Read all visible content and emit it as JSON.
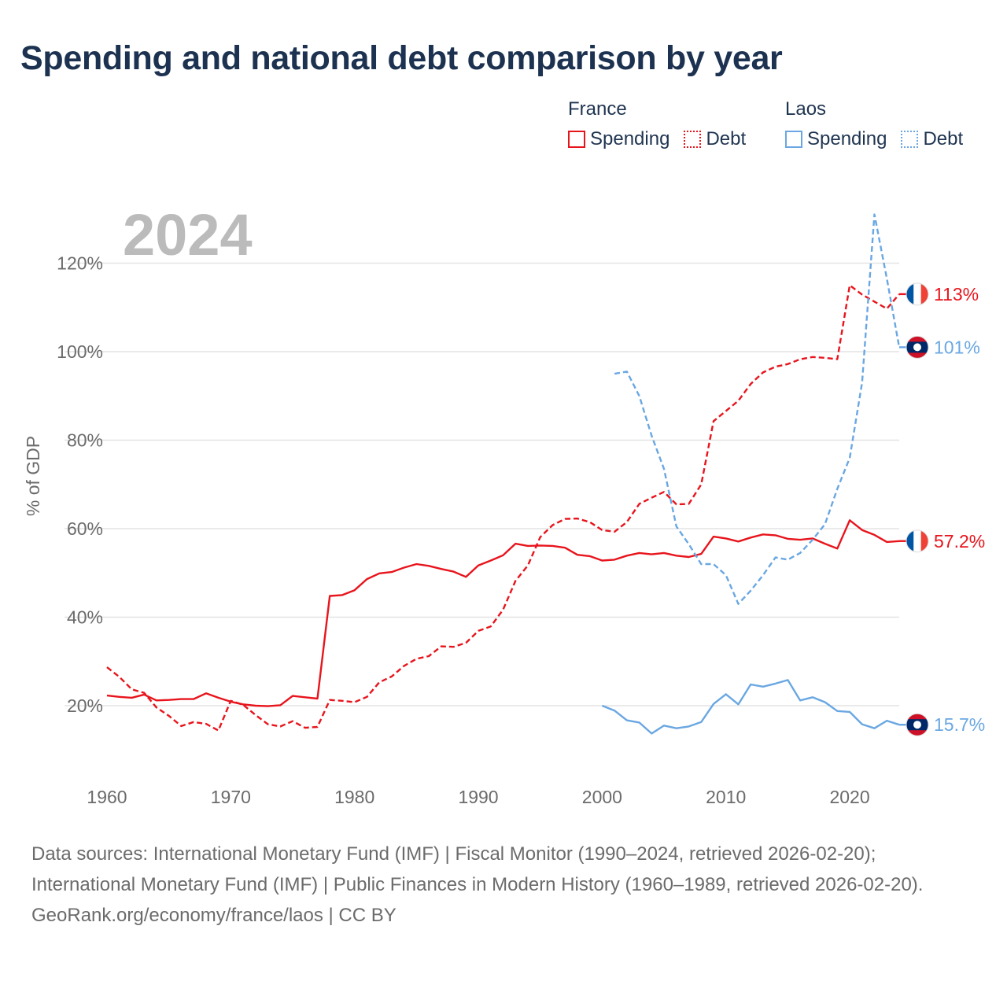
{
  "title": "Spending and national debt comparison by year",
  "colors": {
    "france": "#e8141c",
    "laos": "#6aa7e2",
    "grid": "#e4e4e4",
    "axis_text": "#6b6b6b",
    "year_label": "#bbbbbb"
  },
  "legend": {
    "france": {
      "name": "France",
      "spending": "Spending",
      "debt": "Debt"
    },
    "laos": {
      "name": "Laos",
      "spending": "Spending",
      "debt": "Debt"
    }
  },
  "chart_data": {
    "type": "line",
    "title": "Spending and national debt comparison by year",
    "year_label": "2024",
    "ylabel": "% of GDP",
    "xlim": [
      1960,
      2024
    ],
    "ylim": [
      10,
      130
    ],
    "x_ticks": [
      1960,
      1970,
      1980,
      1990,
      2000,
      2010,
      2020
    ],
    "y_ticks": [
      20,
      40,
      60,
      80,
      100,
      120
    ],
    "y_tick_format": "{v}%",
    "series": [
      {
        "id": "france-spending",
        "name": "France Spending",
        "country": "France",
        "color": "#e8141c",
        "dashed": false,
        "end_label": "57.2%",
        "flag": "france",
        "x": [
          1960,
          1961,
          1962,
          1963,
          1964,
          1965,
          1966,
          1967,
          1968,
          1969,
          1970,
          1971,
          1972,
          1973,
          1974,
          1975,
          1976,
          1977,
          1978,
          1979,
          1980,
          1981,
          1982,
          1983,
          1984,
          1985,
          1986,
          1987,
          1988,
          1989,
          1990,
          1991,
          1992,
          1993,
          1994,
          1995,
          1996,
          1997,
          1998,
          1999,
          2000,
          2001,
          2002,
          2003,
          2004,
          2005,
          2006,
          2007,
          2008,
          2009,
          2010,
          2011,
          2012,
          2013,
          2014,
          2015,
          2016,
          2017,
          2018,
          2019,
          2020,
          2021,
          2022,
          2023,
          2024
        ],
        "y": [
          22.3,
          22.0,
          21.8,
          22.5,
          21.2,
          21.3,
          21.5,
          21.5,
          22.8,
          21.8,
          20.9,
          20.3,
          20.0,
          19.9,
          20.1,
          22.2,
          21.9,
          21.6,
          44.8,
          45.0,
          46.1,
          48.6,
          49.9,
          50.2,
          51.2,
          52.0,
          51.6,
          50.9,
          50.3,
          49.1,
          51.7,
          52.8,
          54.0,
          56.6,
          56.1,
          56.2,
          56.1,
          55.7,
          54.1,
          53.8,
          52.8,
          53.0,
          53.9,
          54.5,
          54.2,
          54.5,
          53.9,
          53.6,
          54.3,
          58.2,
          57.8,
          57.1,
          58.0,
          58.7,
          58.5,
          57.7,
          57.5,
          57.8,
          56.6,
          55.5,
          61.9,
          59.7,
          58.6,
          57.0,
          57.2
        ]
      },
      {
        "id": "france-debt",
        "name": "France Debt",
        "country": "France",
        "color": "#e8141c",
        "dashed": true,
        "end_label": "113%",
        "flag": "france",
        "x": [
          1960,
          1961,
          1962,
          1963,
          1964,
          1965,
          1966,
          1967,
          1968,
          1969,
          1970,
          1971,
          1972,
          1973,
          1974,
          1975,
          1976,
          1977,
          1978,
          1979,
          1980,
          1981,
          1982,
          1983,
          1984,
          1985,
          1986,
          1987,
          1988,
          1989,
          1990,
          1991,
          1992,
          1993,
          1994,
          1995,
          1996,
          1997,
          1998,
          1999,
          2000,
          2001,
          2002,
          2003,
          2004,
          2005,
          2006,
          2007,
          2008,
          2009,
          2010,
          2011,
          2012,
          2013,
          2014,
          2015,
          2016,
          2017,
          2018,
          2019,
          2020,
          2021,
          2022,
          2023,
          2024
        ],
        "y": [
          28.7,
          26.5,
          23.7,
          22.9,
          19.6,
          17.7,
          15.4,
          16.3,
          15.9,
          14.4,
          21.1,
          20.2,
          17.9,
          15.8,
          15.3,
          16.5,
          15.0,
          15.2,
          21.3,
          21.1,
          20.8,
          22.0,
          25.3,
          26.6,
          29.0,
          30.6,
          31.2,
          33.4,
          33.3,
          34.2,
          36.9,
          37.9,
          41.7,
          48.2,
          51.7,
          58.1,
          60.8,
          62.2,
          62.3,
          61.5,
          59.7,
          59.3,
          61.5,
          65.6,
          67.0,
          68.3,
          65.5,
          65.6,
          70.0,
          84.3,
          86.6,
          88.9,
          92.7,
          95.3,
          96.6,
          97.2,
          98.3,
          98.8,
          98.6,
          98.3,
          115.0,
          112.9,
          111.3,
          109.7,
          113.0
        ]
      },
      {
        "id": "laos-spending",
        "name": "Laos Spending",
        "country": "Laos",
        "color": "#6aa7e2",
        "dashed": false,
        "end_label": "15.7%",
        "flag": "laos",
        "x": [
          2000,
          2001,
          2002,
          2003,
          2004,
          2005,
          2006,
          2007,
          2008,
          2009,
          2010,
          2011,
          2012,
          2013,
          2014,
          2015,
          2016,
          2017,
          2018,
          2019,
          2020,
          2021,
          2022,
          2023,
          2024
        ],
        "y": [
          20.0,
          18.9,
          16.7,
          16.2,
          13.7,
          15.5,
          14.9,
          15.3,
          16.3,
          20.4,
          22.6,
          20.3,
          24.8,
          24.3,
          25.0,
          25.8,
          21.2,
          21.9,
          20.8,
          18.8,
          18.6,
          15.8,
          14.9,
          16.6,
          15.7
        ]
      },
      {
        "id": "laos-debt",
        "name": "Laos Debt",
        "country": "Laos",
        "color": "#6aa7e2",
        "dashed": true,
        "end_label": "101%",
        "flag": "laos",
        "x": [
          2001,
          2002,
          2003,
          2004,
          2005,
          2006,
          2007,
          2008,
          2009,
          2010,
          2011,
          2012,
          2013,
          2014,
          2015,
          2016,
          2017,
          2018,
          2019,
          2020,
          2021,
          2022,
          2023,
          2024
        ],
        "y": [
          95.0,
          95.5,
          90.0,
          81.0,
          73.5,
          60.5,
          56.5,
          52.0,
          52.0,
          49.5,
          43.0,
          46.0,
          49.5,
          53.5,
          53.0,
          54.5,
          57.5,
          61.0,
          69.0,
          76.0,
          93.0,
          131.0,
          116.5,
          101.0
        ]
      }
    ]
  },
  "footer": {
    "sources": "Data sources: International Monetary Fund (IMF) | Fiscal Monitor (1990–2024, retrieved 2026-02-20); International Monetary Fund (IMF) | Public Finances in Modern History (1960–1989, retrieved 2026-02-20).",
    "credit": "GeoRank.org/economy/france/laos | CC BY"
  }
}
